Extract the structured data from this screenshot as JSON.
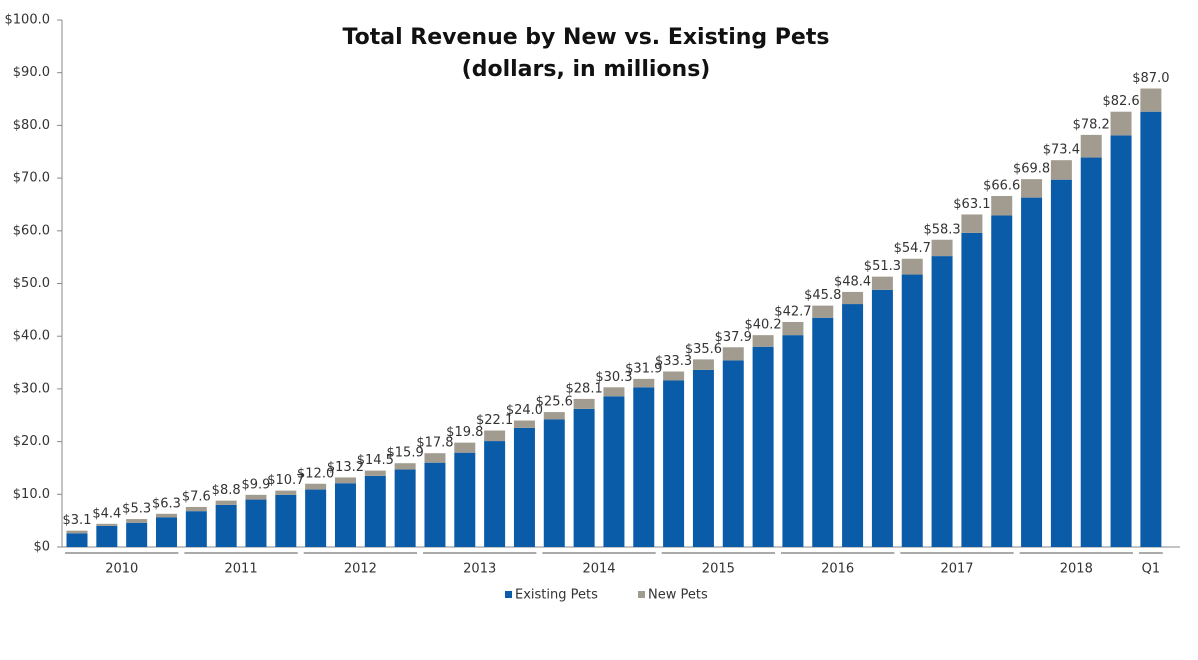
{
  "chart_data": {
    "type": "stacked-bar",
    "title": "Total Revenue by New vs. Existing Pets",
    "subtitle": "(dollars, in millions)",
    "categories": [
      null,
      null,
      null,
      null,
      null,
      null,
      null,
      null,
      null,
      null,
      null,
      null,
      null,
      null,
      null,
      null,
      null,
      null,
      null,
      null,
      null,
      null,
      null,
      null,
      null,
      null,
      null,
      null,
      null,
      null,
      null,
      null,
      null,
      null,
      null,
      null,
      null
    ],
    "x_groups": [
      {
        "label": "2010",
        "span": 4
      },
      {
        "label": "2011",
        "span": 4
      },
      {
        "label": "2012",
        "span": 4
      },
      {
        "label": "2013",
        "span": 4
      },
      {
        "label": "2014",
        "span": 4
      },
      {
        "label": "2015",
        "span": 4
      },
      {
        "label": "2016",
        "span": 4
      },
      {
        "label": "2017",
        "span": 4
      },
      {
        "label": "2018",
        "span": 4
      },
      {
        "label": "Q1",
        "span": 1
      }
    ],
    "series": [
      {
        "name": "Existing Pets",
        "color": "#0b5ca8",
        "values": [
          2.6,
          4.0,
          4.6,
          5.6,
          6.8,
          8.0,
          9.0,
          9.9,
          10.9,
          12.1,
          13.5,
          14.7,
          16.0,
          17.9,
          20.1,
          22.6,
          24.2,
          26.2,
          28.6,
          30.3,
          31.6,
          33.6,
          35.4,
          38.0,
          40.2,
          43.5,
          46.1,
          48.8,
          51.7,
          55.2,
          59.6,
          62.9,
          66.3,
          69.7,
          73.9,
          78.1,
          82.6
        ]
      },
      {
        "name": "New Pets",
        "color": "#a29c90",
        "values": [
          0.5,
          0.4,
          0.7,
          0.7,
          0.8,
          0.8,
          0.9,
          0.8,
          1.1,
          1.1,
          1.0,
          1.2,
          1.8,
          1.9,
          2.0,
          1.4,
          1.4,
          1.9,
          1.7,
          1.6,
          1.7,
          2.0,
          2.5,
          2.2,
          2.5,
          2.3,
          2.3,
          2.5,
          3.0,
          3.1,
          3.5,
          3.7,
          3.5,
          3.7,
          4.3,
          4.5,
          4.4
        ]
      }
    ],
    "totals": [
      3.1,
      4.4,
      5.3,
      6.3,
      7.6,
      8.8,
      9.9,
      10.7,
      12.0,
      13.2,
      14.5,
      15.9,
      17.8,
      19.8,
      22.1,
      24.0,
      25.6,
      28.1,
      30.3,
      31.9,
      33.3,
      35.6,
      37.9,
      40.2,
      42.7,
      45.8,
      48.4,
      51.3,
      54.7,
      58.3,
      63.1,
      66.6,
      69.8,
      73.4,
      78.2,
      82.6,
      87.0
    ],
    "total_labels": [
      "$3.1",
      "$4.4",
      "$5.3",
      "$6.3",
      "$7.6",
      "$8.8",
      "$9.9",
      "$10.7",
      "$12.0",
      "$13.2",
      "$14.5",
      "$15.9",
      "$17.8",
      "$19.8",
      "$22.1",
      "$24.0",
      "$25.6",
      "$28.1",
      "$30.3",
      "$31.9",
      "$33.3",
      "$35.6",
      "$37.9",
      "$40.2",
      "$42.7",
      "$45.8",
      "$48.4",
      "$51.3",
      "$54.7",
      "$58.3",
      "$63.1",
      "$66.6",
      "$69.8",
      "$73.4",
      "$78.2",
      "$82.6",
      "$87.0"
    ],
    "ylim": [
      0,
      100
    ],
    "yticks": [
      {
        "value": 0,
        "label": "$0"
      },
      {
        "value": 10,
        "label": "$10.0"
      },
      {
        "value": 20,
        "label": "$20.0"
      },
      {
        "value": 30,
        "label": "$30.0"
      },
      {
        "value": 40,
        "label": "$40.0"
      },
      {
        "value": 50,
        "label": "$50.0"
      },
      {
        "value": 60,
        "label": "$60.0"
      },
      {
        "value": 70,
        "label": "$70.0"
      },
      {
        "value": 80,
        "label": "$80.0"
      },
      {
        "value": 90,
        "label": "$90.0"
      },
      {
        "value": 100,
        "label": "$100.0"
      }
    ],
    "legend": "bottom"
  }
}
